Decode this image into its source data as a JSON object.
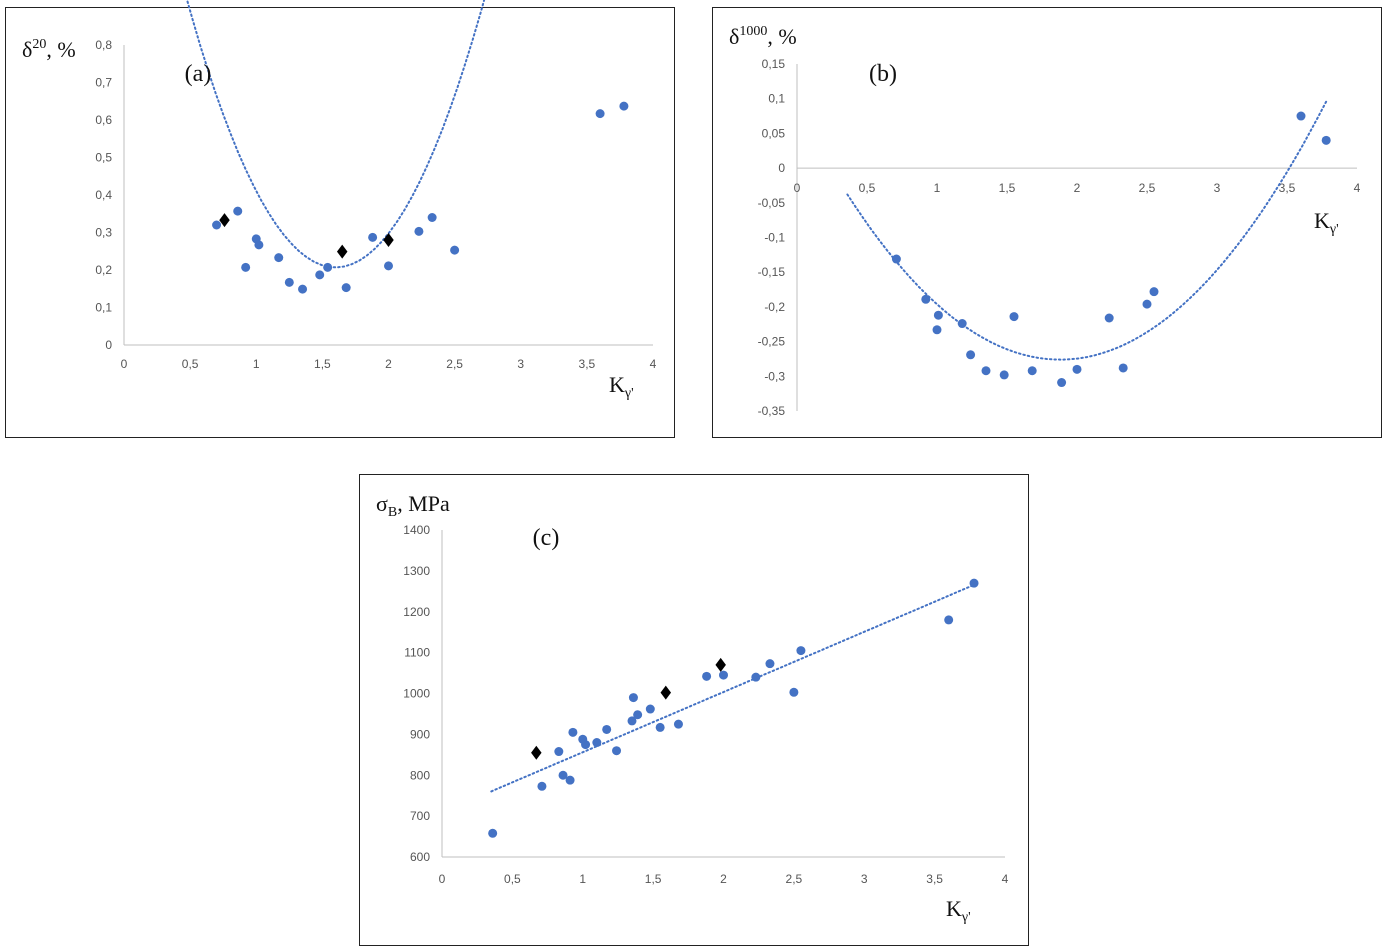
{
  "chart_data": [
    {
      "type": "scatter",
      "panel_label": "(a)",
      "ylabel": {
        "main": "δ",
        "sup": "20",
        "tail": ", %"
      },
      "xlabel": {
        "main": "K",
        "sub": "γ'"
      },
      "xlim": [
        0,
        4
      ],
      "ylim": [
        0,
        0.8
      ],
      "xticks": [
        "0",
        "0,5",
        "1",
        "1,5",
        "2",
        "2,5",
        "3",
        "3,5",
        "4"
      ],
      "yticks": [
        "0",
        "0,1",
        "0,2",
        "0,3",
        "0,4",
        "0,5",
        "0,6",
        "0,7",
        "0,8"
      ],
      "grid": false,
      "colors": {
        "points": "#4472c4",
        "diamonds": "#000000",
        "trend": "#4472c4"
      },
      "series": [
        {
          "marker": "circle",
          "x": [
            0.7,
            0.86,
            0.92,
            1.0,
            1.02,
            1.17,
            1.25,
            1.35,
            1.48,
            1.54,
            1.68,
            1.88,
            2.0,
            2.23,
            2.33,
            2.5,
            3.6,
            3.78
          ],
          "y": [
            0.32,
            0.357,
            0.207,
            0.283,
            0.267,
            0.233,
            0.167,
            0.149,
            0.187,
            0.207,
            0.153,
            0.287,
            0.211,
            0.303,
            0.34,
            0.253,
            0.617,
            0.637
          ]
        },
        {
          "marker": "diamond",
          "x": [
            0.76,
            1.65,
            2.0
          ],
          "y": [
            0.333,
            0.249,
            0.28
          ]
        }
      ],
      "trendline": {
        "kind": "polynomial",
        "x": [
          0.35,
          3.78
        ],
        "coef": [
          0.0757,
          0.2,
          0.565
        ]
      }
    },
    {
      "type": "scatter",
      "panel_label": "(b)",
      "ylabel": {
        "main": "δ",
        "sup": "1000",
        "tail": ", %"
      },
      "xlabel": {
        "main": "K",
        "sub": "γ'"
      },
      "xlim": [
        0,
        4
      ],
      "ylim": [
        -0.35,
        0.15
      ],
      "xticks": [
        "0",
        "0,5",
        "1",
        "1,5",
        "2",
        "2,5",
        "3",
        "3,5",
        "4"
      ],
      "yticks": [
        "-0,35",
        "-0,3",
        "-0,25",
        "-0,2",
        "-0,15",
        "-0,1",
        "-0,05",
        "0",
        "0,05",
        "0,1",
        "0,15"
      ],
      "grid": false,
      "colors": {
        "points": "#4472c4",
        "trend": "#4472c4"
      },
      "series": [
        {
          "marker": "circle",
          "x": [
            0.71,
            0.92,
            1.0,
            1.01,
            1.18,
            1.24,
            1.35,
            1.48,
            1.55,
            1.68,
            1.89,
            2.0,
            2.23,
            2.33,
            2.5,
            2.55,
            3.6,
            3.78
          ],
          "y": [
            -0.131,
            -0.189,
            -0.233,
            -0.212,
            -0.224,
            -0.269,
            -0.292,
            -0.298,
            -0.214,
            -0.292,
            -0.309,
            -0.29,
            -0.216,
            -0.288,
            -0.196,
            -0.178,
            0.075,
            0.04
          ]
        }
      ],
      "trendline": {
        "kind": "polynomial",
        "x": [
          0.36,
          3.78
        ],
        "coef": [
          -0.165,
          -0.276,
          0.103
        ]
      }
    },
    {
      "type": "scatter",
      "panel_label": "(c)",
      "ylabel": {
        "main": "σ",
        "sub": "B",
        "tail": ",  MPa"
      },
      "xlabel": {
        "main": "K",
        "sub": "γ'"
      },
      "xlim": [
        0,
        4
      ],
      "ylim": [
        600,
        1400
      ],
      "xticks": [
        "0",
        "0,5",
        "1",
        "1,5",
        "2",
        "2,5",
        "3",
        "3,5",
        "4"
      ],
      "yticks": [
        "600",
        "700",
        "800",
        "900",
        "1000",
        "1100",
        "1200",
        "1300",
        "1400"
      ],
      "grid": false,
      "colors": {
        "points": "#4472c4",
        "diamonds": "#000000",
        "trend": "#4472c4"
      },
      "series": [
        {
          "marker": "circle",
          "x": [
            0.36,
            0.71,
            0.83,
            0.86,
            0.91,
            0.93,
            1.0,
            1.02,
            1.1,
            1.17,
            1.24,
            1.35,
            1.36,
            1.39,
            1.48,
            1.55,
            1.68,
            1.88,
            2.0,
            2.23,
            2.33,
            2.5,
            2.55,
            3.6,
            3.78
          ],
          "y": [
            658,
            773,
            858,
            800,
            788,
            905,
            888,
            875,
            880,
            912,
            860,
            933,
            990,
            948,
            962,
            917,
            925,
            1042,
            1045,
            1040,
            1073,
            1003,
            1105,
            1180,
            1270
          ]
        },
        {
          "marker": "diamond",
          "x": [
            0.67,
            1.59,
            1.98
          ],
          "y": [
            855,
            1002,
            1070
          ]
        }
      ],
      "trendline": {
        "kind": "linear",
        "x": [
          0.35,
          3.78
        ],
        "coef": [
          709,
          147.3
        ]
      }
    }
  ]
}
